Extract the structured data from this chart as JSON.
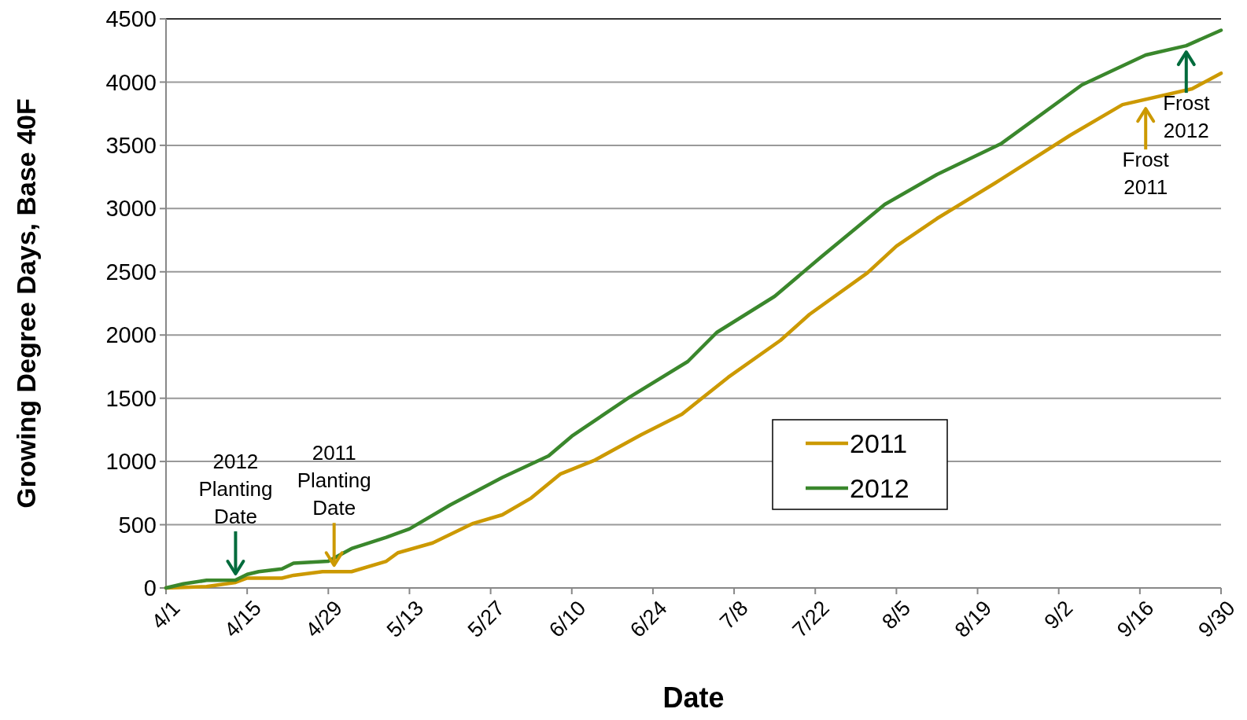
{
  "chart_data": {
    "type": "line",
    "xlabel": "Date",
    "ylabel": "Growing Degree Days, Base 40F",
    "x": [
      "--04-01",
      "--04-04",
      "--04-08",
      "--04-13",
      "--04-15",
      "--04-17",
      "--04-21",
      "--04-23",
      "--04-29",
      "--05-03",
      "--05-09",
      "--05-13",
      "--05-20",
      "--05-29",
      "--06-06",
      "--06-10",
      "--06-12",
      "--06-20",
      "--06-30",
      "--07-05",
      "--07-15",
      "--07-23",
      "--08-03",
      "--08-12",
      "--08-23",
      "--09-06",
      "--09-17",
      "--09-24",
      "--09-30"
    ],
    "series": [
      {
        "name": "2011",
        "color": "#cc9900",
        "x": [
          "--04-01",
          "--04-08",
          "--04-13",
          "--04-15",
          "--04-21",
          "--04-23",
          "--04-28",
          "--05-03",
          "--05-09",
          "--05-11",
          "--05-17",
          "--05-24",
          "--05-29",
          "--06-03",
          "--06-08",
          "--06-14",
          "--06-22",
          "--06-29",
          "--07-07",
          "--07-16",
          "--07-21",
          "--07-31",
          "--08-05",
          "--08-12",
          "--08-22",
          "--09-04",
          "--09-13",
          "--09-25",
          "--09-30"
        ],
        "values": [
          0,
          11,
          44,
          78,
          78,
          100,
          129,
          129,
          211,
          278,
          356,
          511,
          578,
          711,
          900,
          1011,
          1212,
          1374,
          1666,
          1958,
          2163,
          2492,
          2703,
          2921,
          3201,
          3580,
          3822,
          3947,
          4070
        ]
      },
      {
        "name": "2012",
        "color": "#3a872c",
        "values": [
          0,
          33,
          60,
          62,
          107,
          129,
          151,
          196,
          211,
          311,
          400,
          467,
          656,
          873,
          1044,
          1200,
          1262,
          1510,
          1790,
          2020,
          2306,
          2617,
          3033,
          3269,
          3511,
          3978,
          4214,
          4288,
          4410
        ]
      }
    ],
    "xlim": [
      "--04-01",
      "--09-30"
    ],
    "xticks": [
      {
        "value": "--04-01",
        "label": "4/1"
      },
      {
        "value": "--04-15",
        "label": "4/15"
      },
      {
        "value": "--04-29",
        "label": "4/29"
      },
      {
        "value": "--05-13",
        "label": "5/13"
      },
      {
        "value": "--05-27",
        "label": "5/27"
      },
      {
        "value": "--06-10",
        "label": "6/10"
      },
      {
        "value": "--06-24",
        "label": "6/24"
      },
      {
        "value": "--07-08",
        "label": "7/8"
      },
      {
        "value": "--07-22",
        "label": "7/22"
      },
      {
        "value": "--08-05",
        "label": "8/5"
      },
      {
        "value": "--08-19",
        "label": "8/19"
      },
      {
        "value": "--09-02",
        "label": "9/2"
      },
      {
        "value": "--09-16",
        "label": "9/16"
      },
      {
        "value": "--09-30",
        "label": "9/30"
      }
    ],
    "ylim": [
      0,
      4500
    ],
    "yticks": [
      0,
      500,
      1000,
      1500,
      2000,
      2500,
      3000,
      3500,
      4000,
      4500
    ],
    "grid": "y",
    "legend": "bottom right",
    "marker": "none",
    "line_style": "solid",
    "annotations": [
      {
        "text": "2012 Planting Date",
        "x": "--04-13",
        "y": 62
      },
      {
        "text": "2011 Planting Date",
        "x": "--04-30",
        "y": 129
      },
      {
        "text": "Frost 2011",
        "x": "--09-17",
        "y": 3840
      },
      {
        "text": "Frost 2012",
        "x": "--09-24",
        "y": 4288
      }
    ]
  }
}
